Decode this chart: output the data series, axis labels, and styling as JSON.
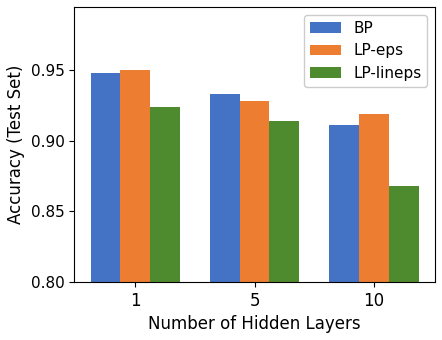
{
  "categories": [
    "1",
    "5",
    "10"
  ],
  "series": {
    "BP": [
      0.948,
      0.933,
      0.911
    ],
    "LP-eps": [
      0.95,
      0.928,
      0.919
    ],
    "LP-lineps": [
      0.924,
      0.914,
      0.868
    ]
  },
  "colors": {
    "BP": "#4472c4",
    "LP-eps": "#ed7d31",
    "LP-lineps": "#4e8a2e"
  },
  "xlabel": "Number of Hidden Layers",
  "ylabel": "Accuracy (Test Set)",
  "ylim": [
    0.8,
    0.995
  ],
  "yticks": [
    0.8,
    0.85,
    0.9,
    0.95
  ],
  "bar_width": 0.25,
  "figsize": [
    4.42,
    3.4
  ],
  "dpi": 100
}
